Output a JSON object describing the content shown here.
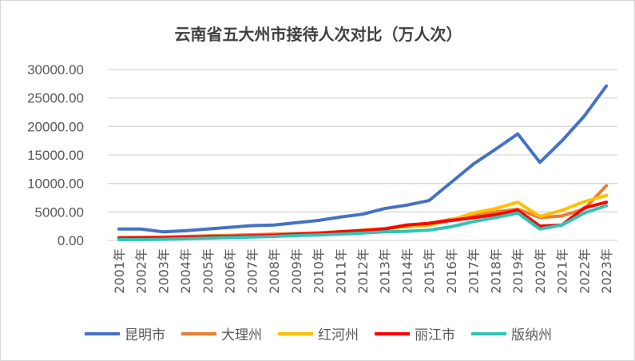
{
  "chart_data": {
    "type": "line",
    "title": "云南省五大州市接待人次对比（万人次）",
    "xlabel": "",
    "ylabel": "",
    "ylim": [
      0,
      30000
    ],
    "yticks": [
      "0.00",
      "5000.00",
      "10000.00",
      "15000.00",
      "20000.00",
      "25000.00",
      "30000.00"
    ],
    "grid": true,
    "legend_position": "bottom",
    "categories": [
      "2001年",
      "2002年",
      "2003年",
      "2004年",
      "2005年",
      "2006年",
      "2007年",
      "2008年",
      "2009年",
      "2010年",
      "2011年",
      "2012年",
      "2013年",
      "2014年",
      "2015年",
      "2016年",
      "2017年",
      "2018年",
      "2019年",
      "2020年",
      "2021年",
      "2022年",
      "2023年"
    ],
    "series": [
      {
        "name": "昆明市",
        "color": "#4472C4",
        "values": [
          2000,
          2000,
          1500,
          1700,
          2000,
          2300,
          2600,
          2700,
          3100,
          3500,
          4100,
          4600,
          5600,
          6200,
          7000,
          10200,
          13400,
          16000,
          18700,
          13700,
          17500,
          21800,
          27100
        ]
      },
      {
        "name": "大理州",
        "color": "#ED7D31",
        "values": [
          500,
          550,
          600,
          700,
          800,
          900,
          1000,
          1100,
          1200,
          1350,
          1550,
          1800,
          2100,
          2600,
          3000,
          3700,
          4300,
          5000,
          5500,
          4000,
          4300,
          5500,
          9600
        ]
      },
      {
        "name": "红河州",
        "color": "#FFC000",
        "values": [
          300,
          350,
          400,
          500,
          600,
          650,
          750,
          850,
          1050,
          1200,
          1400,
          1700,
          2100,
          2400,
          2700,
          3600,
          4800,
          5600,
          6700,
          4200,
          5300,
          6800,
          7900
        ]
      },
      {
        "name": "丽江市",
        "color": "#FF0000",
        "values": [
          400,
          450,
          450,
          550,
          650,
          700,
          800,
          900,
          1100,
          1200,
          1500,
          1700,
          2000,
          2700,
          3000,
          3500,
          4000,
          4500,
          5300,
          2500,
          2700,
          5700,
          6700
        ]
      },
      {
        "name": "版纳州",
        "color": "#2EC4B6",
        "values": [
          150,
          150,
          200,
          300,
          400,
          500,
          600,
          700,
          850,
          950,
          1100,
          1300,
          1500,
          1600,
          1800,
          2400,
          3300,
          4000,
          4800,
          2000,
          2700,
          4800,
          6100
        ]
      }
    ]
  }
}
